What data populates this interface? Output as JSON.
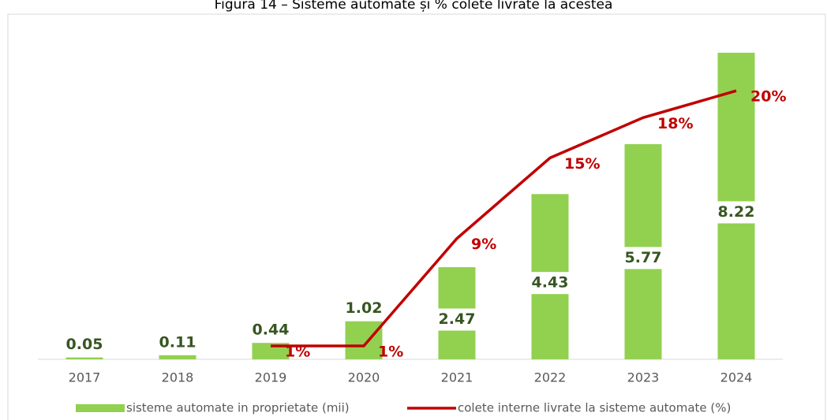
{
  "chart_data": {
    "type": "bar+line",
    "title": "Figura 14 – Sisteme automate și % colete livrate la acestea",
    "categories": [
      "2017",
      "2018",
      "2019",
      "2020",
      "2021",
      "2022",
      "2023",
      "2024"
    ],
    "ylim": [
      0,
      9
    ],
    "y2lim": [
      0,
      25
    ],
    "series": [
      {
        "name": "sisteme automate in proprietate (mii)",
        "type": "bar",
        "color": "#92d050",
        "values": [
          0.05,
          0.11,
          0.44,
          1.02,
          2.47,
          4.43,
          5.77,
          8.22
        ]
      },
      {
        "name": "colete interne livrate la sisteme automate (%)",
        "type": "line",
        "axis": "y2",
        "color": "#c00000",
        "values": [
          null,
          null,
          1,
          1,
          9,
          15,
          18,
          20
        ],
        "value_labels": [
          null,
          null,
          "1%",
          "1%",
          "9%",
          "15%",
          "18%",
          "20%"
        ]
      }
    ]
  }
}
